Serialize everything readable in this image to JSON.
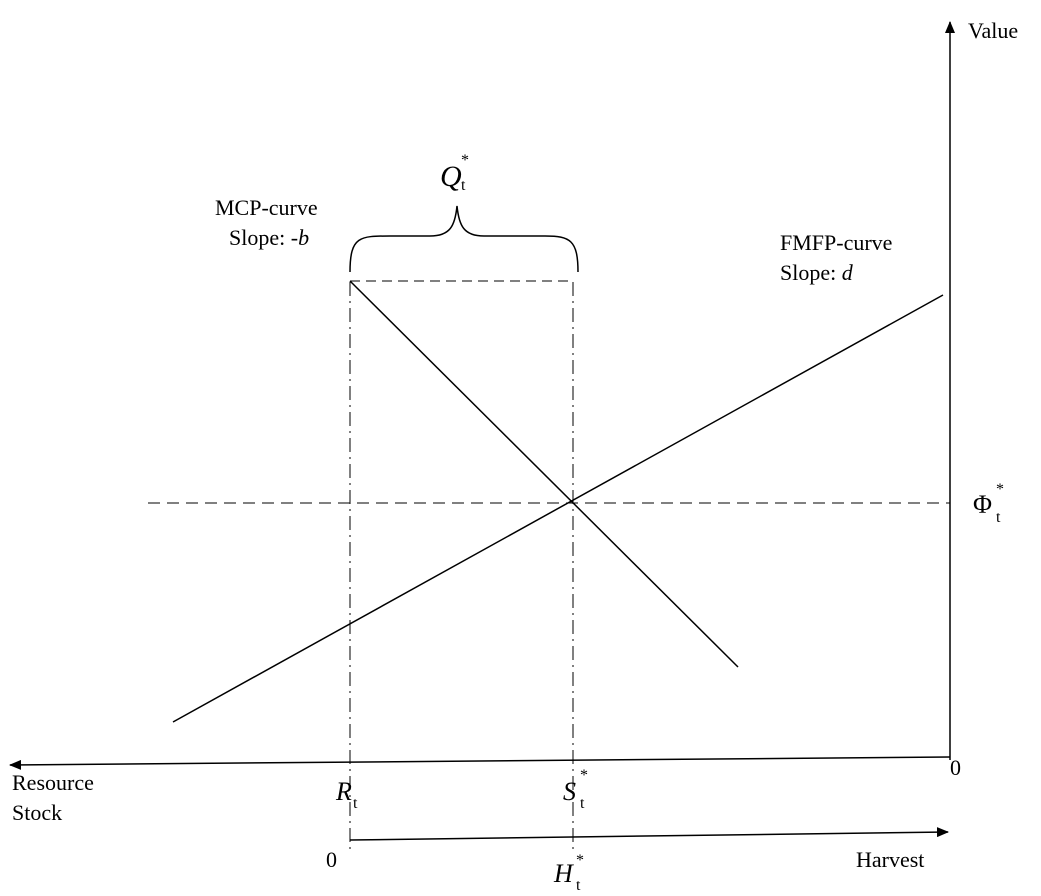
{
  "axes": {
    "value_label": "Value",
    "resource_label_line1": "Resource",
    "resource_label_line2": "Stock",
    "harvest_label": "Harvest",
    "origin_right": "0",
    "origin_bottom": "0"
  },
  "curves": {
    "mcp_name": "MCP-curve",
    "mcp_slope_prefix": "Slope: -",
    "mcp_slope_symbol": "b",
    "fmfp_name": "FMFP-curve",
    "fmfp_slope_prefix": "Slope: ",
    "fmfp_slope_symbol": "d"
  },
  "symbols": {
    "q_letter": "Q",
    "q_sub": "t",
    "q_sup": "*",
    "phi_letter": "Φ",
    "phi_sub": "t",
    "phi_sup": "*",
    "r_letter": "R",
    "r_sub": "t",
    "s_letter": "S",
    "s_sub": "t",
    "s_sup": "*",
    "h_letter": "H",
    "h_sub": "t",
    "h_sup": "*"
  }
}
